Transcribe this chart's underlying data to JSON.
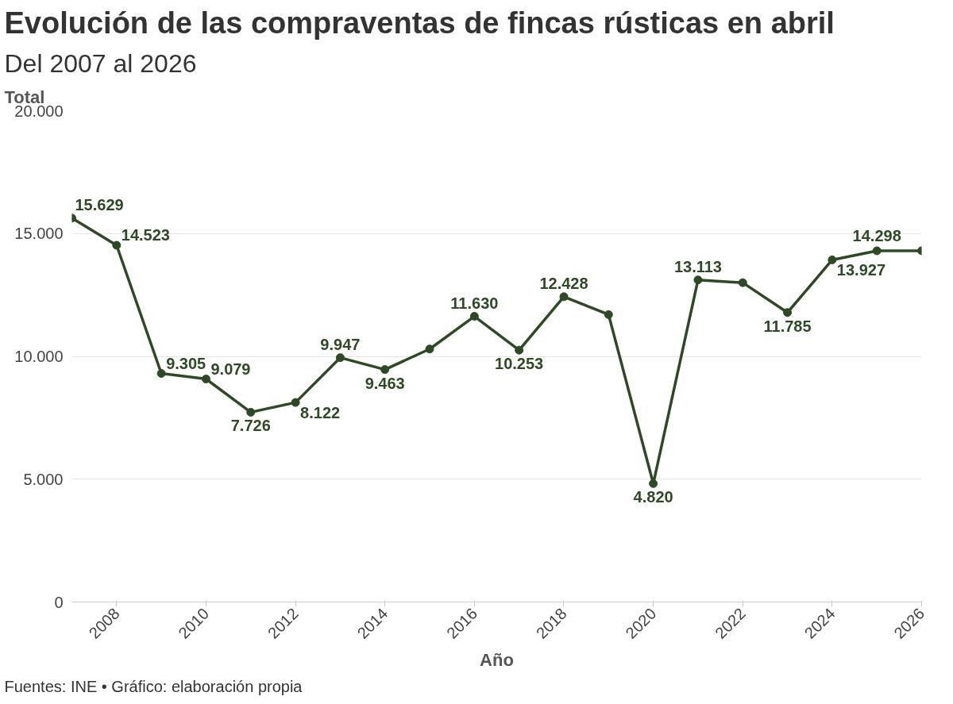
{
  "chart_data": {
    "type": "line",
    "title": "Evolución de las compraventas de fincas rústicas en abril",
    "subtitle": "Del 2007 al 2026",
    "xlabel": "Año",
    "ylabel": "Total",
    "x": [
      2007,
      2008,
      2009,
      2010,
      2011,
      2012,
      2013,
      2014,
      2015,
      2016,
      2017,
      2018,
      2019,
      2020,
      2021,
      2022,
      2023,
      2024,
      2025,
      2026
    ],
    "series": [
      {
        "color": "#2d4a25",
        "values": [
          15629,
          14523,
          9305,
          9079,
          7726,
          8122,
          9947,
          9463,
          10300,
          11630,
          10253,
          12428,
          11700,
          4820,
          13113,
          13000,
          11785,
          13927,
          14298,
          14300
        ],
        "value_labels": [
          "15.629",
          "14.523",
          "9.305",
          "9.079",
          "7.726",
          "8.122",
          "9.947",
          "9.463",
          null,
          "11.630",
          "10.253",
          "12.428",
          null,
          "4.820",
          "13.113",
          null,
          "11.785",
          "13.927",
          "14.298",
          null
        ]
      }
    ],
    "xlim": [
      2007,
      2026
    ],
    "xticks": [
      2008,
      2010,
      2012,
      2014,
      2016,
      2018,
      2020,
      2022,
      2024,
      2026
    ],
    "ylim": [
      0,
      20000
    ],
    "yticks": [
      {
        "value": 0,
        "label": "0"
      },
      {
        "value": 5000,
        "label": "5.000"
      },
      {
        "value": 10000,
        "label": "10.000"
      },
      {
        "value": 15000,
        "label": "15.000"
      },
      {
        "value": 20000,
        "label": "20.000"
      }
    ],
    "grid": "y",
    "marker": "circle",
    "line_style": "solid",
    "annotations": [
      "Fuentes: INE • Gráfico: elaboración propia"
    ]
  }
}
